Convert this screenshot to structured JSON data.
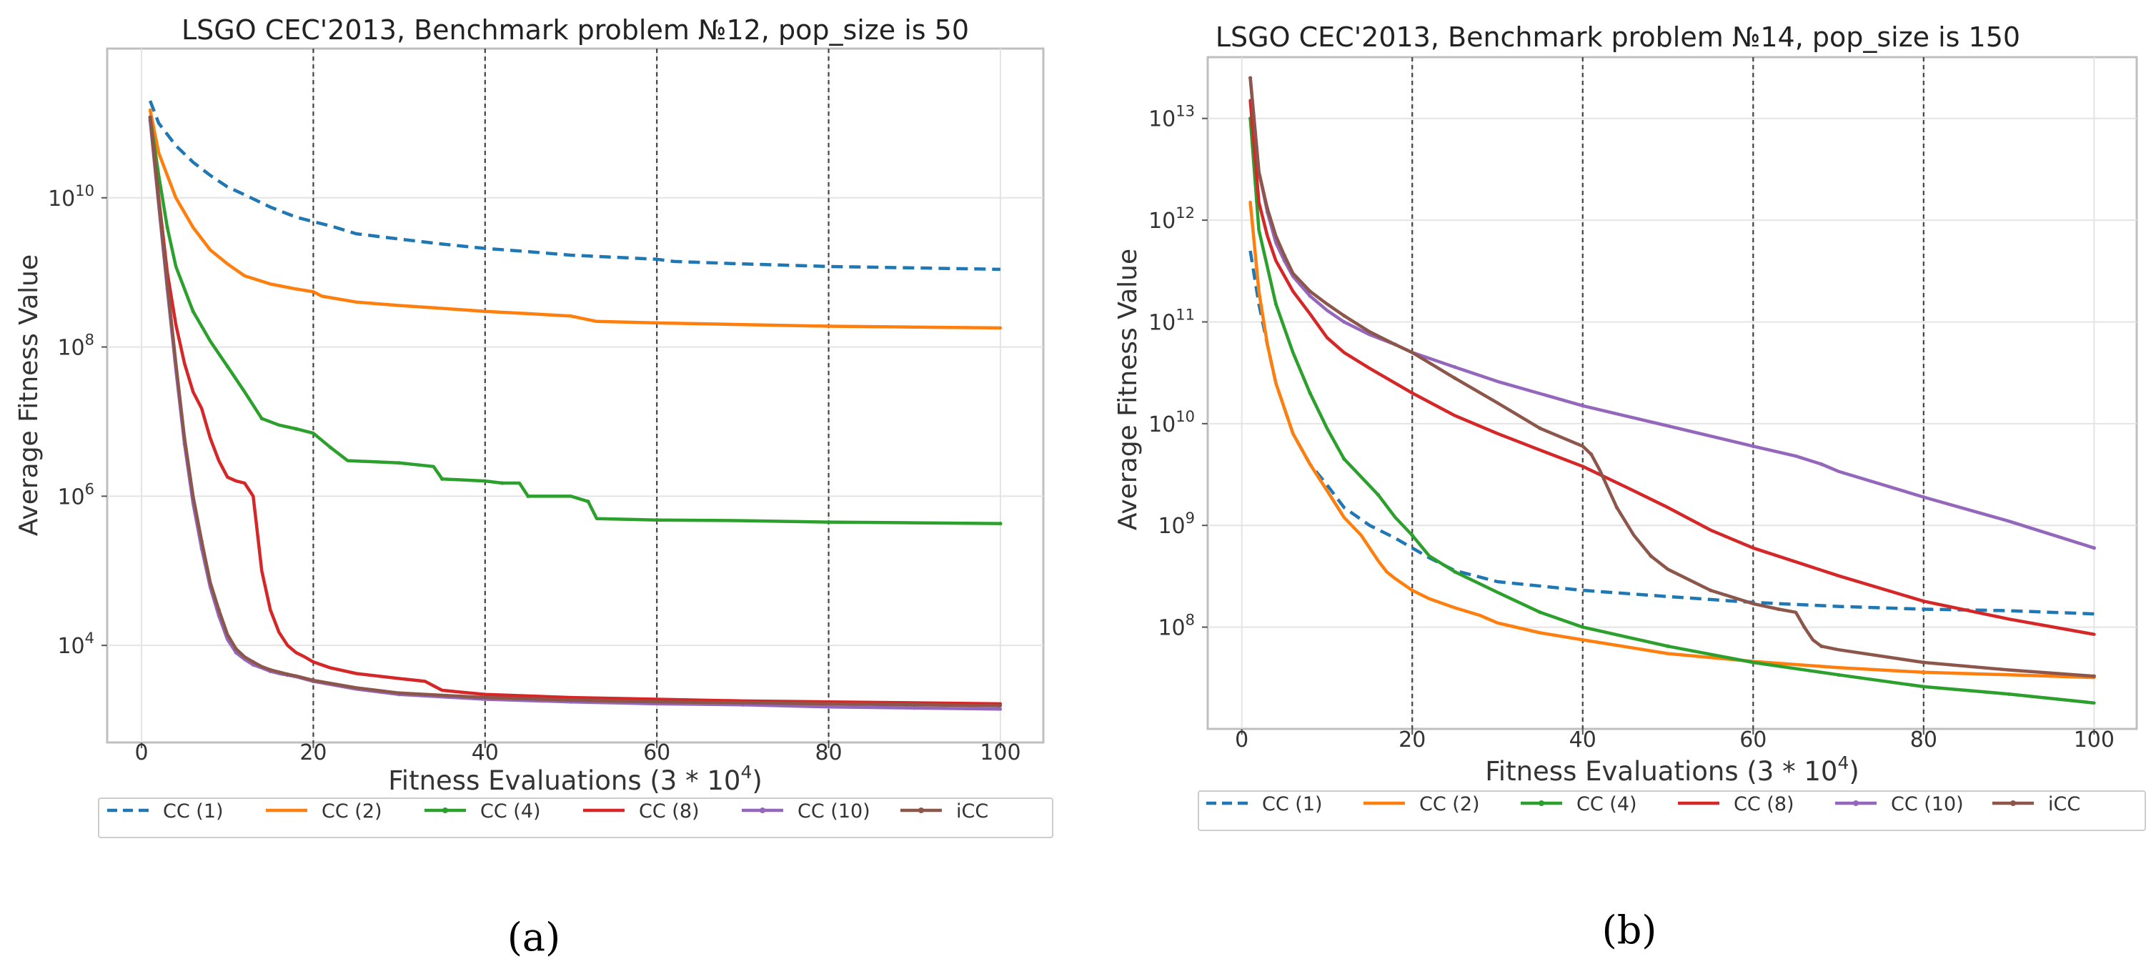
{
  "figure": {
    "panel_labels": [
      "(a)",
      "(b)"
    ]
  },
  "chart_data": [
    {
      "type": "line",
      "title": "LSGO CEC'2013, Benchmark problem №12, pop_size is 50",
      "xlabel_text": "Fitness Evaluations (3 * 10",
      "xlabel_sup": "4",
      "xlabel_close": ")",
      "ylabel": "Average Fitness Value",
      "y_scale": "log",
      "xlim": [
        -4,
        105
      ],
      "ylim": [
        500.0,
        1000000000000.0
      ],
      "x_ticks": [
        0,
        20,
        40,
        60,
        80,
        100
      ],
      "y_ticks": [
        {
          "exp": 4,
          "label_base": "10",
          "label_exp": "4"
        },
        {
          "exp": 6,
          "label_base": "10",
          "label_exp": "6"
        },
        {
          "exp": 8,
          "label_base": "10",
          "label_exp": "8"
        },
        {
          "exp": 10,
          "label_base": "10",
          "label_exp": "10"
        }
      ],
      "vlines": [
        20,
        40,
        60,
        80
      ],
      "grid": true,
      "legend_position": "bottom",
      "series": [
        {
          "name": "CC (1)",
          "color": "#1f77b4",
          "style": "dashed",
          "x": [
            1,
            2,
            4,
            6,
            8,
            10,
            12,
            15,
            18,
            20,
            22,
            25,
            30,
            35,
            40,
            45,
            50,
            55,
            60,
            62,
            70,
            80,
            90,
            100
          ],
          "y": [
            200000000000.0,
            100000000000.0,
            50000000000.0,
            30000000000.0,
            20000000000.0,
            14000000000.0,
            11000000000.0,
            7500000000.0,
            5500000000.0,
            4800000000.0,
            4200000000.0,
            3300000000.0,
            2800000000.0,
            2400000000.0,
            2100000000.0,
            1900000000.0,
            1700000000.0,
            1600000000.0,
            1500000000.0,
            1400000000.0,
            1300000000.0,
            1200000000.0,
            1150000000.0,
            1100000000.0
          ]
        },
        {
          "name": "CC (2)",
          "color": "#ff7f0e",
          "style": "solid",
          "x": [
            1,
            2,
            4,
            6,
            8,
            10,
            12,
            15,
            18,
            20,
            21,
            25,
            30,
            35,
            40,
            45,
            50,
            53,
            60,
            70,
            80,
            90,
            100
          ],
          "y": [
            150000000000.0,
            40000000000.0,
            10000000000.0,
            4000000000.0,
            2000000000.0,
            1300000000.0,
            900000000.0,
            700000000.0,
            600000000.0,
            550000000.0,
            480000000.0,
            400000000.0,
            360000000.0,
            330000000.0,
            300000000.0,
            280000000.0,
            260000000.0,
            220000000.0,
            210000000.0,
            200000000.0,
            190000000.0,
            185000000.0,
            180000000.0
          ]
        },
        {
          "name": "CC (4)",
          "color": "#2ca02c",
          "style": "solid-markers",
          "x": [
            1,
            2,
            3,
            4,
            6,
            8,
            10,
            12,
            14,
            16,
            18,
            20,
            22,
            24,
            30,
            34,
            35,
            40,
            42,
            44,
            45,
            50,
            52,
            53,
            60,
            70,
            80,
            90,
            100
          ],
          "y": [
            120000000000.0,
            20000000000.0,
            4000000000.0,
            1200000000.0,
            300000000.0,
            120000000.0,
            55000000.0,
            25000000.0,
            11000000.0,
            9000000.0,
            8000000.0,
            7000000.0,
            4500000.0,
            3000000.0,
            2800000.0,
            2500000.0,
            1700000.0,
            1600000.0,
            1500000.0,
            1500000.0,
            1000000.0,
            1000000.0,
            850000.0,
            500000.0,
            480000.0,
            470000.0,
            450000.0,
            440000.0,
            430000.0
          ]
        },
        {
          "name": "CC (8)",
          "color": "#d62728",
          "style": "solid",
          "x": [
            1,
            2,
            3,
            4,
            5,
            6,
            7,
            8,
            9,
            10,
            11,
            12,
            13,
            14,
            15,
            16,
            17,
            18,
            19,
            20,
            22,
            25,
            30,
            33,
            35,
            40,
            50,
            60,
            70,
            80,
            90,
            100
          ],
          "y": [
            120000000000.0,
            10000000000.0,
            1000000000.0,
            200000000.0,
            60000000.0,
            25000000.0,
            15000000.0,
            6000000.0,
            3000000.0,
            1800000.0,
            1600000.0,
            1500000.0,
            1000000.0,
            100000.0,
            30000.0,
            15000.0,
            10000.0,
            8000.0,
            7000.0,
            6000.0,
            5000.0,
            4200.0,
            3600.0,
            3300.0,
            2500.0,
            2200.0,
            2000.0,
            1900.0,
            1800.0,
            1750.0,
            1700.0,
            1650.0
          ]
        },
        {
          "name": "CC (10)",
          "color": "#9467bd",
          "style": "solid-markers",
          "x": [
            1,
            2,
            3,
            4,
            5,
            6,
            7,
            8,
            9,
            10,
            11,
            12,
            13,
            14,
            15,
            16,
            17,
            18,
            20,
            25,
            30,
            40,
            50,
            60,
            70,
            80,
            90,
            100
          ],
          "y": [
            110000000000.0,
            8000000000.0,
            600000000.0,
            50000000.0,
            5000000.0,
            800000.0,
            200000.0,
            60000.0,
            25000.0,
            12000.0,
            8000.0,
            6500.0,
            5500.0,
            5000.0,
            4500.0,
            4200.0,
            4000.0,
            3800.0,
            3300.0,
            2600.0,
            2200.0,
            1900.0,
            1750.0,
            1650.0,
            1600.0,
            1500.0,
            1450.0,
            1400.0
          ]
        },
        {
          "name": "iCC",
          "color": "#8c564b",
          "style": "solid-markers",
          "x": [
            1,
            2,
            3,
            4,
            5,
            6,
            7,
            8,
            9,
            10,
            11,
            12,
            13,
            14,
            15,
            16,
            17,
            18,
            20,
            25,
            30,
            40,
            50,
            60,
            70,
            80,
            90,
            100
          ],
          "y": [
            120000000000.0,
            9000000000.0,
            700000000.0,
            60000000.0,
            6000000.0,
            1000000.0,
            250000.0,
            70000.0,
            30000.0,
            14000.0,
            9000.0,
            7000.0,
            6000.0,
            5200.0,
            4700.0,
            4400.0,
            4100.0,
            3900.0,
            3400.0,
            2700.0,
            2300.0,
            2000.0,
            1850.0,
            1750.0,
            1700.0,
            1650.0,
            1600.0,
            1550.0
          ]
        }
      ]
    },
    {
      "type": "line",
      "title": "LSGO CEC'2013, Benchmark problem №14, pop_size is 150",
      "xlabel_text": "Fitness Evaluations (3 * 10",
      "xlabel_sup": "4",
      "xlabel_close": ")",
      "ylabel": "Average Fitness Value",
      "y_scale": "log",
      "xlim": [
        -4,
        105
      ],
      "ylim": [
        10000000.0,
        40000000000000.0
      ],
      "x_ticks": [
        0,
        20,
        40,
        60,
        80,
        100
      ],
      "y_ticks": [
        {
          "exp": 8,
          "label_base": "10",
          "label_exp": "8"
        },
        {
          "exp": 9,
          "label_base": "10",
          "label_exp": "9"
        },
        {
          "exp": 10,
          "label_base": "10",
          "label_exp": "10"
        },
        {
          "exp": 11,
          "label_base": "10",
          "label_exp": "11"
        },
        {
          "exp": 12,
          "label_base": "10",
          "label_exp": "12"
        },
        {
          "exp": 13,
          "label_base": "10",
          "label_exp": "13"
        }
      ],
      "vlines": [
        20,
        40,
        60,
        80
      ],
      "grid": true,
      "legend_position": "bottom",
      "series": [
        {
          "name": "CC (1)",
          "color": "#1f77b4",
          "style": "dashed",
          "x": [
            1,
            2,
            3,
            4,
            6,
            8,
            10,
            12,
            15,
            18,
            20,
            22,
            25,
            30,
            40,
            50,
            60,
            70,
            80,
            90,
            100
          ],
          "y": [
            500000000000.0,
            150000000000.0,
            60000000000.0,
            25000000000.0,
            8000000000.0,
            4000000000.0,
            2500000000.0,
            1500000000.0,
            1000000000.0,
            750000000.0,
            600000000.0,
            480000000.0,
            360000000.0,
            280000000.0,
            230000000.0,
            200000000.0,
            175000000.0,
            160000000.0,
            150000000.0,
            145000000.0,
            135000000.0
          ]
        },
        {
          "name": "CC (2)",
          "color": "#ff7f0e",
          "style": "solid",
          "x": [
            1,
            2,
            3,
            4,
            6,
            8,
            10,
            12,
            14,
            15,
            16,
            17,
            18,
            20,
            22,
            25,
            28,
            30,
            35,
            40,
            50,
            60,
            70,
            80,
            90,
            100
          ],
          "y": [
            1500000000000.0,
            200000000000.0,
            60000000000.0,
            25000000000.0,
            8000000000.0,
            4000000000.0,
            2200000000.0,
            1200000000.0,
            800000000.0,
            600000000.0,
            450000000.0,
            350000000.0,
            300000000.0,
            230000000.0,
            190000000.0,
            155000000.0,
            130000000.0,
            110000000.0,
            88000000.0,
            75000000.0,
            55000000.0,
            46000000.0,
            40000000.0,
            36000000.0,
            34000000.0,
            32000000.0
          ]
        },
        {
          "name": "CC (4)",
          "color": "#2ca02c",
          "style": "solid-markers",
          "x": [
            1,
            2,
            4,
            6,
            8,
            10,
            12,
            14,
            16,
            18,
            20,
            22,
            25,
            30,
            35,
            40,
            50,
            60,
            70,
            80,
            90,
            100
          ],
          "y": [
            10000000000000.0,
            800000000000.0,
            150000000000.0,
            50000000000.0,
            20000000000.0,
            9000000000.0,
            4500000000.0,
            3000000000.0,
            2000000000.0,
            1200000000.0,
            800000000.0,
            500000000.0,
            350000000.0,
            220000000.0,
            140000000.0,
            100000000.0,
            65000000.0,
            45000000.0,
            34000000.0,
            26000000.0,
            22000000.0,
            18000000.0
          ]
        },
        {
          "name": "CC (8)",
          "color": "#d62728",
          "style": "solid",
          "x": [
            1,
            2,
            3,
            4,
            6,
            8,
            10,
            12,
            15,
            18,
            20,
            25,
            30,
            35,
            40,
            45,
            50,
            55,
            60,
            70,
            80,
            90,
            100
          ],
          "y": [
            15000000000000.0,
            1500000000000.0,
            700000000000.0,
            400000000000.0,
            200000000000.0,
            120000000000.0,
            70000000000.0,
            50000000000.0,
            35000000000.0,
            25000000000.0,
            20000000000.0,
            12000000000.0,
            8000000000.0,
            5500000000.0,
            3800000000.0,
            2400000000.0,
            1500000000.0,
            900000000.0,
            600000000.0,
            320000000.0,
            180000000.0,
            120000000.0,
            85000000.0
          ]
        },
        {
          "name": "CC (10)",
          "color": "#9467bd",
          "style": "solid-markers",
          "x": [
            1,
            2,
            3,
            4,
            5,
            6,
            8,
            10,
            12,
            15,
            18,
            20,
            25,
            30,
            40,
            50,
            60,
            65,
            68,
            70,
            80,
            90,
            100
          ],
          "y": [
            25000000000000.0,
            3000000000000.0,
            1200000000000.0,
            600000000000.0,
            400000000000.0,
            280000000000.0,
            180000000000.0,
            130000000000.0,
            100000000000.0,
            75000000000.0,
            60000000000.0,
            50000000000.0,
            36000000000.0,
            26000000000.0,
            15000000000.0,
            9500000000.0,
            6000000000.0,
            4800000000.0,
            4000000000.0,
            3400000000.0,
            1900000000.0,
            1100000000.0,
            600000000.0
          ]
        },
        {
          "name": "iCC",
          "color": "#8c564b",
          "style": "solid-markers",
          "x": [
            1,
            2,
            3,
            4,
            5,
            6,
            8,
            10,
            12,
            15,
            18,
            20,
            25,
            30,
            35,
            40,
            41,
            42,
            44,
            46,
            48,
            50,
            55,
            60,
            63,
            65,
            66,
            67,
            68,
            70,
            80,
            90,
            100
          ],
          "y": [
            25000000000000.0,
            3000000000000.0,
            1300000000000.0,
            700000000000.0,
            450000000000.0,
            300000000000.0,
            200000000000.0,
            150000000000.0,
            115000000000.0,
            80000000000.0,
            60000000000.0,
            50000000000.0,
            28000000000.0,
            16000000000.0,
            9000000000.0,
            6000000000.0,
            5000000000.0,
            3500000000.0,
            1500000000.0,
            800000000.0,
            500000000.0,
            370000000.0,
            230000000.0,
            170000000.0,
            150000000.0,
            140000000.0,
            100000000.0,
            75000000.0,
            65000000.0,
            60000000.0,
            45000000.0,
            38000000.0,
            33000000.0
          ]
        }
      ]
    }
  ]
}
